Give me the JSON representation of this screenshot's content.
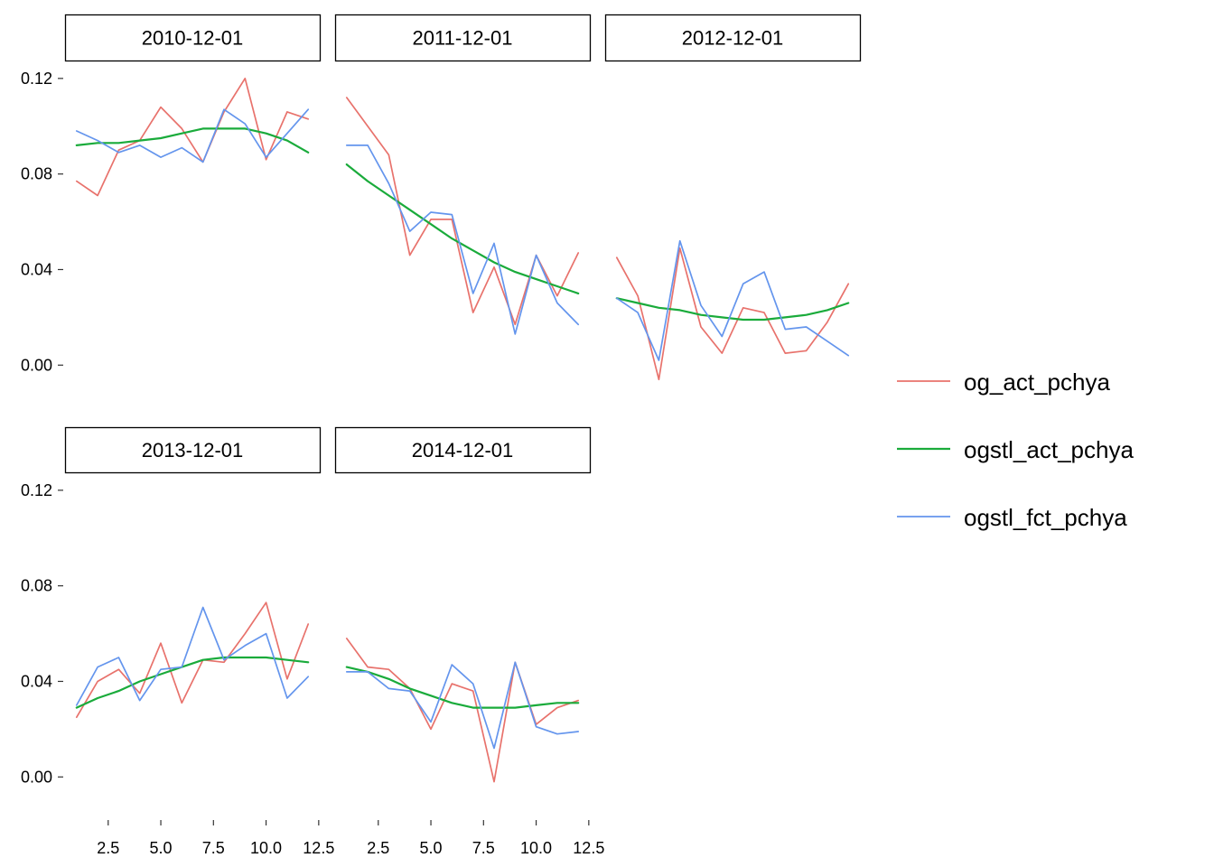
{
  "chart_data": {
    "type": "line",
    "facet_panels": [
      {
        "label": "2010-12-01",
        "series": [
          {
            "name": "og_act_pchya",
            "x": [
              1,
              2,
              3,
              4,
              5,
              6,
              7,
              8,
              9,
              10,
              11,
              12
            ],
            "values": [
              0.077,
              0.071,
              0.09,
              0.094,
              0.108,
              0.099,
              0.085,
              0.106,
              0.12,
              0.086,
              0.106,
              0.103
            ]
          },
          {
            "name": "ogstl_act_pchya",
            "x": [
              1,
              2,
              3,
              4,
              5,
              6,
              7,
              8,
              9,
              10,
              11,
              12
            ],
            "values": [
              0.092,
              0.093,
              0.093,
              0.094,
              0.095,
              0.097,
              0.099,
              0.099,
              0.099,
              0.097,
              0.094,
              0.089
            ]
          },
          {
            "name": "ogstl_fct_pchya",
            "x": [
              1,
              2,
              3,
              4,
              5,
              6,
              7,
              8,
              9,
              10,
              11,
              12
            ],
            "values": [
              0.098,
              0.094,
              0.089,
              0.092,
              0.087,
              0.091,
              0.085,
              0.107,
              0.101,
              0.087,
              0.097,
              0.107
            ]
          }
        ]
      },
      {
        "label": "2011-12-01",
        "series": [
          {
            "name": "og_act_pchya",
            "x": [
              1,
              2,
              3,
              4,
              5,
              6,
              7,
              8,
              9,
              10,
              11,
              12
            ],
            "values": [
              0.112,
              0.1,
              0.088,
              0.046,
              0.061,
              0.061,
              0.022,
              0.041,
              0.017,
              0.046,
              0.029,
              0.047
            ]
          },
          {
            "name": "ogstl_act_pchya",
            "x": [
              1,
              2,
              3,
              4,
              5,
              6,
              7,
              8,
              9,
              10,
              11,
              12
            ],
            "values": [
              0.084,
              0.077,
              0.071,
              0.065,
              0.059,
              0.053,
              0.048,
              0.043,
              0.039,
              0.036,
              0.033,
              0.03
            ]
          },
          {
            "name": "ogstl_fct_pchya",
            "x": [
              1,
              2,
              3,
              4,
              5,
              6,
              7,
              8,
              9,
              10,
              11,
              12
            ],
            "values": [
              0.092,
              0.092,
              0.076,
              0.056,
              0.064,
              0.063,
              0.03,
              0.051,
              0.013,
              0.046,
              0.026,
              0.017
            ]
          }
        ]
      },
      {
        "label": "2012-12-01",
        "series": [
          {
            "name": "og_act_pchya",
            "x": [
              1,
              2,
              3,
              4,
              5,
              6,
              7,
              8,
              9,
              10,
              11,
              12
            ],
            "values": [
              0.045,
              0.029,
              -0.006,
              0.049,
              0.016,
              0.005,
              0.024,
              0.022,
              0.005,
              0.006,
              0.018,
              0.034
            ]
          },
          {
            "name": "ogstl_act_pchya",
            "x": [
              1,
              2,
              3,
              4,
              5,
              6,
              7,
              8,
              9,
              10,
              11,
              12
            ],
            "values": [
              0.028,
              0.026,
              0.024,
              0.023,
              0.021,
              0.02,
              0.019,
              0.019,
              0.02,
              0.021,
              0.023,
              0.026
            ]
          },
          {
            "name": "ogstl_fct_pchya",
            "x": [
              1,
              2,
              3,
              4,
              5,
              6,
              7,
              8,
              9,
              10,
              11,
              12
            ],
            "values": [
              0.028,
              0.022,
              0.002,
              0.052,
              0.025,
              0.012,
              0.034,
              0.039,
              0.015,
              0.016,
              0.01,
              0.004
            ]
          }
        ]
      },
      {
        "label": "2013-12-01",
        "series": [
          {
            "name": "og_act_pchya",
            "x": [
              1,
              2,
              3,
              4,
              5,
              6,
              7,
              8,
              9,
              10,
              11,
              12
            ],
            "values": [
              0.025,
              0.04,
              0.045,
              0.035,
              0.056,
              0.031,
              0.049,
              0.048,
              0.06,
              0.073,
              0.041,
              0.064
            ]
          },
          {
            "name": "ogstl_act_pchya",
            "x": [
              1,
              2,
              3,
              4,
              5,
              6,
              7,
              8,
              9,
              10,
              11,
              12
            ],
            "values": [
              0.029,
              0.033,
              0.036,
              0.04,
              0.043,
              0.046,
              0.049,
              0.05,
              0.05,
              0.05,
              0.049,
              0.048
            ]
          },
          {
            "name": "ogstl_fct_pchya",
            "x": [
              1,
              2,
              3,
              4,
              5,
              6,
              7,
              8,
              9,
              10,
              11,
              12
            ],
            "values": [
              0.03,
              0.046,
              0.05,
              0.032,
              0.045,
              0.046,
              0.071,
              0.049,
              0.055,
              0.06,
              0.033,
              0.042
            ]
          }
        ]
      },
      {
        "label": "2014-12-01",
        "series": [
          {
            "name": "og_act_pchya",
            "x": [
              1,
              2,
              3,
              4,
              5,
              6,
              7,
              8,
              9,
              10,
              11,
              12
            ],
            "values": [
              0.058,
              0.046,
              0.045,
              0.037,
              0.02,
              0.039,
              0.036,
              -0.002,
              0.048,
              0.022,
              0.029,
              0.032
            ]
          },
          {
            "name": "ogstl_act_pchya",
            "x": [
              1,
              2,
              3,
              4,
              5,
              6,
              7,
              8,
              9,
              10,
              11,
              12
            ],
            "values": [
              0.046,
              0.044,
              0.041,
              0.037,
              0.034,
              0.031,
              0.029,
              0.029,
              0.029,
              0.03,
              0.031,
              0.031
            ]
          },
          {
            "name": "ogstl_fct_pchya",
            "x": [
              1,
              2,
              3,
              4,
              5,
              6,
              7,
              8,
              9,
              10,
              11,
              12
            ],
            "values": [
              0.044,
              0.044,
              0.037,
              0.036,
              0.023,
              0.047,
              0.039,
              0.012,
              0.048,
              0.021,
              0.018,
              0.019
            ]
          }
        ]
      }
    ],
    "series_colors": {
      "og_act_pchya": "#E8726C",
      "ogstl_act_pchya": "#1AAB3B",
      "ogstl_fct_pchya": "#6495ED"
    },
    "legend": {
      "position": "right",
      "entries": [
        "og_act_pchya",
        "ogstl_act_pchya",
        "ogstl_fct_pchya"
      ]
    },
    "y_ticks": [
      "0.00",
      "0.04",
      "0.08",
      "0.12"
    ],
    "y_tick_values": [
      0,
      0.04,
      0.08,
      0.12
    ],
    "x_ticks": [
      "2.5",
      "5.0",
      "7.5",
      "10.0",
      "12.5"
    ],
    "x_tick_values": [
      2.5,
      5.0,
      7.5,
      10.0,
      12.5
    ],
    "xlim": [
      0.45,
      12.55
    ],
    "ylim": [
      -0.0135,
      0.1275
    ],
    "grid": false,
    "xlabel": "",
    "ylabel": "",
    "title": ""
  }
}
